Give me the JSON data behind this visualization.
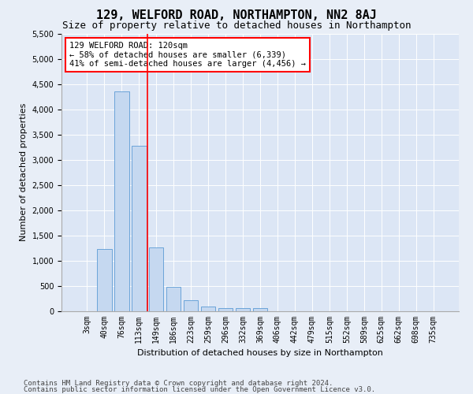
{
  "title": "129, WELFORD ROAD, NORTHAMPTON, NN2 8AJ",
  "subtitle": "Size of property relative to detached houses in Northampton",
  "xlabel": "Distribution of detached houses by size in Northampton",
  "ylabel": "Number of detached properties",
  "footer_line1": "Contains HM Land Registry data © Crown copyright and database right 2024.",
  "footer_line2": "Contains public sector information licensed under the Open Government Licence v3.0.",
  "bar_labels": [
    "3sqm",
    "40sqm",
    "76sqm",
    "113sqm",
    "149sqm",
    "186sqm",
    "223sqm",
    "259sqm",
    "296sqm",
    "332sqm",
    "369sqm",
    "406sqm",
    "442sqm",
    "479sqm",
    "515sqm",
    "552sqm",
    "589sqm",
    "625sqm",
    "662sqm",
    "698sqm",
    "735sqm"
  ],
  "bar_values": [
    0,
    1230,
    4350,
    3280,
    1270,
    490,
    220,
    90,
    55,
    55,
    55,
    0,
    0,
    0,
    0,
    0,
    0,
    0,
    0,
    0,
    0
  ],
  "bar_color": "#c5d8f0",
  "bar_edge_color": "#5b9bd5",
  "vline_color": "red",
  "vline_position": 3.5,
  "annotation_title": "129 WELFORD ROAD: 120sqm",
  "annotation_line2": "← 58% of detached houses are smaller (6,339)",
  "annotation_line3": "41% of semi-detached houses are larger (4,456) →",
  "annotation_box_color": "white",
  "annotation_box_edge": "red",
  "ylim_max": 5500,
  "yticks": [
    0,
    500,
    1000,
    1500,
    2000,
    2500,
    3000,
    3500,
    4000,
    4500,
    5000,
    5500
  ],
  "bg_color": "#e8eef7",
  "plot_bg_color": "#dce6f5",
  "title_fontsize": 11,
  "subtitle_fontsize": 9,
  "axis_label_fontsize": 8,
  "tick_fontsize": 7,
  "annotation_fontsize": 7.5,
  "footer_fontsize": 6.5
}
